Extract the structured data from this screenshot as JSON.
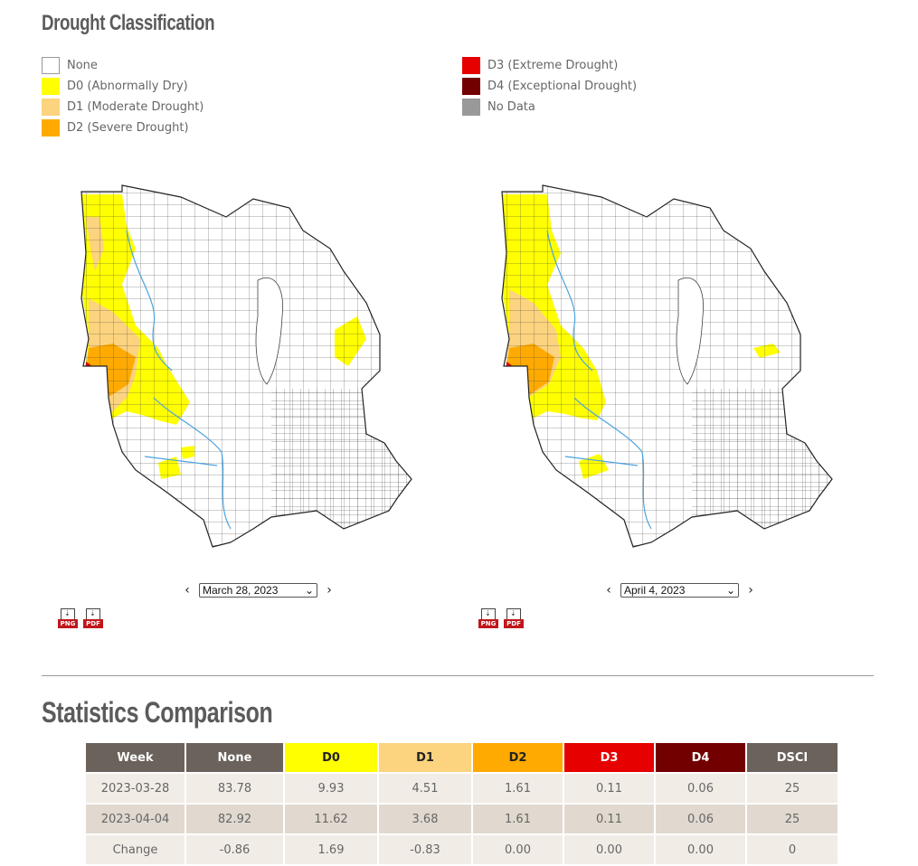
{
  "legend": {
    "title": "Drought Classification",
    "items": [
      {
        "label": "None",
        "color": "#ffffff"
      },
      {
        "label": "D0 (Abnormally Dry)",
        "color": "#ffff00"
      },
      {
        "label": "D1 (Moderate Drought)",
        "color": "#fcd37f"
      },
      {
        "label": "D2 (Severe Drought)",
        "color": "#ffaa00"
      },
      {
        "label": "D3 (Extreme Drought)",
        "color": "#e60000"
      },
      {
        "label": "D4 (Exceptional Drought)",
        "color": "#730000"
      },
      {
        "label": "No Data",
        "color": "#999999"
      }
    ]
  },
  "map_left": {
    "date": "March 28, 2023",
    "prev": "‹",
    "next": "›",
    "png": "PNG",
    "pdf": "PDF"
  },
  "map_right": {
    "date": "April 4, 2023",
    "prev": "‹",
    "next": "›",
    "png": "PNG",
    "pdf": "PDF"
  },
  "stats": {
    "title": "Statistics Comparison",
    "columns": [
      {
        "label": "Week",
        "bg": "#6a625b",
        "fg": "#ffffff"
      },
      {
        "label": "None",
        "bg": "#6a625b",
        "fg": "#ffffff"
      },
      {
        "label": "D0",
        "bg": "#ffff00",
        "fg": "#222222"
      },
      {
        "label": "D1",
        "bg": "#fcd37f",
        "fg": "#222222"
      },
      {
        "label": "D2",
        "bg": "#ffaa00",
        "fg": "#222222"
      },
      {
        "label": "D3",
        "bg": "#e60000",
        "fg": "#ffffff"
      },
      {
        "label": "D4",
        "bg": "#730000",
        "fg": "#ffffff"
      },
      {
        "label": "DSCI",
        "bg": "#6a625b",
        "fg": "#ffffff"
      }
    ],
    "rows": [
      [
        "2023-03-28",
        "83.78",
        "9.93",
        "4.51",
        "1.61",
        "0.11",
        "0.06",
        "25"
      ],
      [
        "2023-04-04",
        "82.92",
        "11.62",
        "3.68",
        "1.61",
        "0.11",
        "0.06",
        "25"
      ],
      [
        "Change",
        "-0.86",
        "1.69",
        "-0.83",
        "0.00",
        "0.00",
        "0.00",
        "0"
      ]
    ]
  }
}
